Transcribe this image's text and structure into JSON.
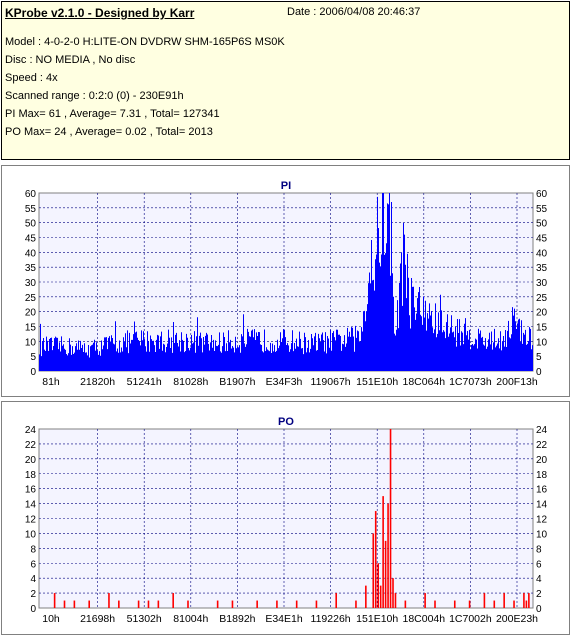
{
  "header": {
    "title": "KProbe v2.1.0 - Designed by Karr",
    "date": "Date : 2006/04/08 20:46:37",
    "lines": [
      "Model : 4-0-2-0 H:LITE-ON DVDRW SHM-165P6S MS0K",
      "Disc : NO MEDIA , No disc",
      "Speed : 4x",
      "Scanned range : 0:2:0 (0) - 230E91h",
      "PI Max= 61 , Average= 7.31 , Total= 127341",
      "PO Max= 24 , Average= 0.02 , Total= 2013"
    ]
  },
  "colors": {
    "pi": "#0000ff",
    "po": "#ff0000",
    "plot_bg": "#f4f4ff",
    "grid": "#000080"
  },
  "chart_data": [
    {
      "type": "bar",
      "title": "PI",
      "ylim": [
        0,
        60
      ],
      "yticks": [
        0,
        5,
        10,
        15,
        20,
        25,
        30,
        35,
        40,
        45,
        50,
        55,
        60
      ],
      "xtick_labels": [
        "81h",
        "21820h",
        "51241h",
        "81028h",
        "B1907h",
        "E34F3h",
        "119067h",
        "151E10h",
        "18C064h",
        "1C7073h",
        "200F13h"
      ],
      "grid": true,
      "profile": [
        [
          0,
          9
        ],
        [
          0.05,
          9
        ],
        [
          0.1,
          8
        ],
        [
          0.15,
          10
        ],
        [
          0.2,
          11
        ],
        [
          0.25,
          11
        ],
        [
          0.3,
          11
        ],
        [
          0.35,
          10
        ],
        [
          0.4,
          11
        ],
        [
          0.45,
          11
        ],
        [
          0.5,
          11
        ],
        [
          0.55,
          10
        ],
        [
          0.6,
          11
        ],
        [
          0.65,
          12
        ],
        [
          0.66,
          28
        ],
        [
          0.68,
          40
        ],
        [
          0.69,
          55
        ],
        [
          0.7,
          61
        ],
        [
          0.71,
          42
        ],
        [
          0.72,
          14
        ],
        [
          0.73,
          30
        ],
        [
          0.74,
          45
        ],
        [
          0.75,
          26
        ],
        [
          0.78,
          20
        ],
        [
          0.82,
          16
        ],
        [
          0.86,
          14
        ],
        [
          0.9,
          11
        ],
        [
          0.93,
          11
        ],
        [
          0.95,
          15
        ],
        [
          0.96,
          19
        ],
        [
          0.97,
          14
        ],
        [
          1.0,
          11
        ]
      ]
    },
    {
      "type": "bar",
      "title": "PO",
      "ylim": [
        0,
        24
      ],
      "yticks": [
        0,
        2,
        4,
        6,
        8,
        10,
        12,
        14,
        16,
        18,
        20,
        22,
        24
      ],
      "xtick_labels": [
        "10h",
        "21698h",
        "51302h",
        "81004h",
        "B1892h",
        "E34E1h",
        "119226h",
        "151E10h",
        "18C004h",
        "1C7002h",
        "200E23h"
      ],
      "grid": true,
      "spikes": [
        [
          0.03,
          2
        ],
        [
          0.05,
          1
        ],
        [
          0.07,
          1
        ],
        [
          0.1,
          1
        ],
        [
          0.14,
          2
        ],
        [
          0.16,
          1
        ],
        [
          0.2,
          1
        ],
        [
          0.22,
          1
        ],
        [
          0.24,
          1
        ],
        [
          0.27,
          2
        ],
        [
          0.3,
          1
        ],
        [
          0.36,
          1
        ],
        [
          0.39,
          1
        ],
        [
          0.44,
          1
        ],
        [
          0.48,
          1
        ],
        [
          0.52,
          1
        ],
        [
          0.56,
          1
        ],
        [
          0.6,
          2
        ],
        [
          0.64,
          1
        ],
        [
          0.66,
          3
        ],
        [
          0.675,
          10
        ],
        [
          0.68,
          13
        ],
        [
          0.685,
          6
        ],
        [
          0.69,
          3
        ],
        [
          0.695,
          15
        ],
        [
          0.7,
          9
        ],
        [
          0.705,
          14
        ],
        [
          0.71,
          24
        ],
        [
          0.715,
          4
        ],
        [
          0.72,
          2
        ],
        [
          0.74,
          1
        ],
        [
          0.78,
          2
        ],
        [
          0.8,
          1
        ],
        [
          0.84,
          1
        ],
        [
          0.87,
          1
        ],
        [
          0.9,
          2
        ],
        [
          0.92,
          1
        ],
        [
          0.94,
          2
        ],
        [
          0.96,
          1
        ],
        [
          0.98,
          2
        ],
        [
          0.985,
          1
        ],
        [
          0.99,
          2
        ]
      ]
    }
  ]
}
